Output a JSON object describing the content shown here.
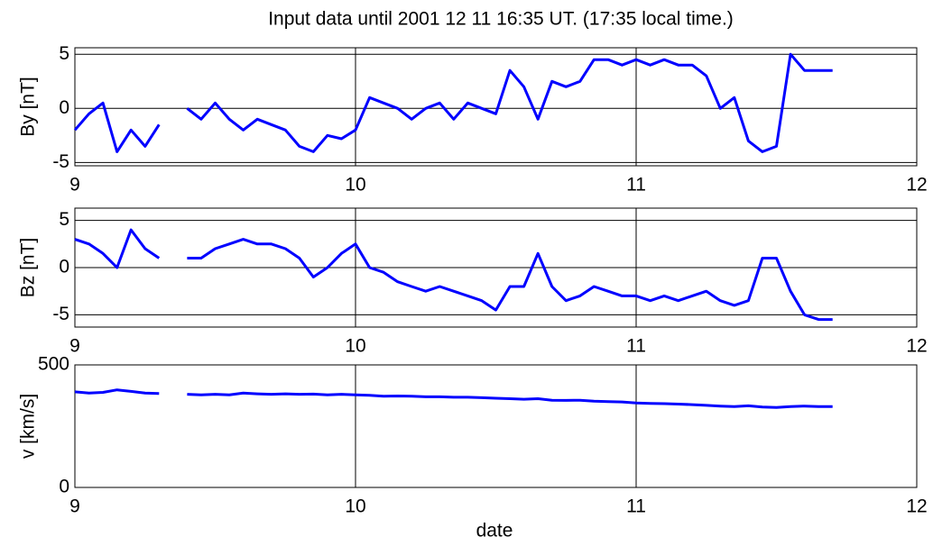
{
  "chart_data": [
    {
      "type": "line",
      "title": "Input data until 2001  12  11  16:35 UT. (17:35 local time.)",
      "ylabel": "By [nT]",
      "x": [
        9.0,
        9.05,
        9.1,
        9.15,
        9.2,
        9.25,
        9.3,
        9.35,
        9.4,
        9.45,
        9.5,
        9.55,
        9.6,
        9.65,
        9.7,
        9.75,
        9.8,
        9.85,
        9.9,
        9.95,
        10.0,
        10.05,
        10.1,
        10.15,
        10.2,
        10.25,
        10.3,
        10.35,
        10.4,
        10.45,
        10.5,
        10.55,
        10.6,
        10.65,
        10.7,
        10.75,
        10.8,
        10.85,
        10.9,
        10.95,
        11.0,
        11.05,
        11.1,
        11.15,
        11.2,
        11.25,
        11.3,
        11.35,
        11.4,
        11.45,
        11.5,
        11.55,
        11.6,
        11.65,
        11.7
      ],
      "series": [
        {
          "color": "#0000ff",
          "values": [
            -2,
            -0.5,
            0.5,
            -4,
            -2,
            -3.5,
            -1.5,
            null,
            0,
            -1,
            0.5,
            -1,
            -2,
            -1,
            -1.5,
            -2,
            -3.5,
            -4,
            -2.5,
            -2.8,
            -2,
            1,
            0.5,
            0,
            -1,
            0,
            0.5,
            -1,
            0.5,
            0,
            -0.5,
            3.5,
            2,
            -1,
            2.5,
            2,
            2.5,
            4.5,
            4.5,
            4,
            4.5,
            4,
            4.5,
            4,
            4,
            3,
            0,
            1,
            -3,
            -4,
            -3.5,
            5,
            3.5,
            3.5,
            3.5
          ]
        }
      ],
      "xlim": [
        9,
        12
      ],
      "xticks": [
        9,
        10,
        11,
        12
      ],
      "ylim": [
        -5.3,
        5.6
      ],
      "yticks": [
        -5,
        0,
        5
      ],
      "grid": true
    },
    {
      "type": "line",
      "ylabel": "Bz [nT]",
      "x": [
        9.0,
        9.05,
        9.1,
        9.15,
        9.2,
        9.25,
        9.3,
        9.35,
        9.4,
        9.45,
        9.5,
        9.55,
        9.6,
        9.65,
        9.7,
        9.75,
        9.8,
        9.85,
        9.9,
        9.95,
        10.0,
        10.05,
        10.1,
        10.15,
        10.2,
        10.25,
        10.3,
        10.35,
        10.4,
        10.45,
        10.5,
        10.55,
        10.6,
        10.65,
        10.7,
        10.75,
        10.8,
        10.85,
        10.9,
        10.95,
        11.0,
        11.05,
        11.1,
        11.15,
        11.2,
        11.25,
        11.3,
        11.35,
        11.4,
        11.45,
        11.5,
        11.55,
        11.6,
        11.65,
        11.7
      ],
      "series": [
        {
          "color": "#0000ff",
          "values": [
            3,
            2.5,
            1.5,
            0,
            4,
            2,
            1,
            null,
            1,
            1,
            2,
            2.5,
            3,
            2.5,
            2.5,
            2,
            1,
            -1,
            0,
            1.5,
            2.5,
            0,
            -0.5,
            -1.5,
            -2,
            -2.5,
            -2,
            -2.5,
            -3,
            -3.5,
            -4.5,
            -2,
            -2,
            1.5,
            -2,
            -3.5,
            -3,
            -2,
            -2.5,
            -3,
            -3,
            -3.5,
            -3,
            -3.5,
            -3,
            -2.5,
            -3.5,
            -4,
            -3.5,
            1,
            1,
            -2.5,
            -5,
            -5.5,
            -5.5
          ]
        }
      ],
      "xlim": [
        9,
        12
      ],
      "xticks": [
        9,
        10,
        11,
        12
      ],
      "ylim": [
        -6.3,
        6.3
      ],
      "yticks": [
        -5,
        0,
        5
      ],
      "grid": true
    },
    {
      "type": "line",
      "ylabel": "v [km/s]",
      "xlabel": "date",
      "x": [
        9.0,
        9.05,
        9.1,
        9.15,
        9.2,
        9.25,
        9.3,
        9.35,
        9.4,
        9.45,
        9.5,
        9.55,
        9.6,
        9.65,
        9.7,
        9.75,
        9.8,
        9.85,
        9.9,
        9.95,
        10.0,
        10.05,
        10.1,
        10.15,
        10.2,
        10.25,
        10.3,
        10.35,
        10.4,
        10.45,
        10.5,
        10.55,
        10.6,
        10.65,
        10.7,
        10.75,
        10.8,
        10.85,
        10.9,
        10.95,
        11.0,
        11.05,
        11.1,
        11.15,
        11.2,
        11.25,
        11.3,
        11.35,
        11.4,
        11.45,
        11.5,
        11.55,
        11.6,
        11.65,
        11.7
      ],
      "series": [
        {
          "color": "#0000ff",
          "values": [
            390,
            385,
            388,
            398,
            392,
            385,
            383,
            null,
            380,
            378,
            380,
            378,
            385,
            382,
            380,
            382,
            380,
            381,
            378,
            380,
            378,
            376,
            372,
            373,
            372,
            370,
            370,
            368,
            368,
            366,
            364,
            362,
            360,
            362,
            356,
            355,
            356,
            352,
            350,
            349,
            345,
            343,
            342,
            340,
            338,
            335,
            332,
            330,
            333,
            328,
            326,
            330,
            332,
            330,
            330
          ]
        }
      ],
      "xlim": [
        9,
        12
      ],
      "xticks": [
        9,
        10,
        11,
        12
      ],
      "ylim": [
        0,
        500
      ],
      "yticks": [
        0,
        500
      ],
      "grid": true
    }
  ]
}
